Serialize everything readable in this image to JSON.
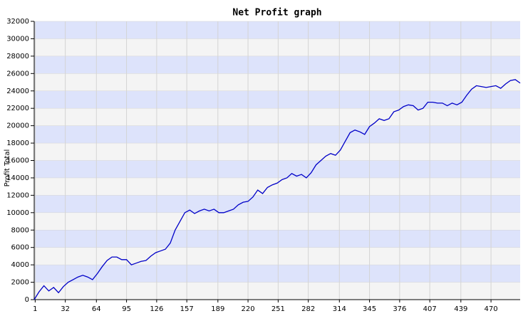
{
  "chart_data": {
    "type": "line",
    "title": "Net Profit graph",
    "y_label": "Profit Total",
    "x": [
      0,
      5,
      10,
      15,
      20,
      25,
      30,
      35,
      40,
      45,
      50,
      55,
      60,
      65,
      70,
      75,
      80,
      85,
      90,
      95,
      100,
      105,
      110,
      115,
      120,
      125,
      130,
      135,
      140,
      145,
      150,
      155,
      160,
      165,
      170,
      175,
      180,
      185,
      190,
      195,
      200,
      205,
      210,
      215,
      220,
      225,
      230,
      235,
      240,
      245,
      250,
      255,
      260,
      265,
      270,
      275,
      280,
      285,
      290,
      295,
      300,
      305,
      310,
      315,
      320,
      325,
      330,
      335,
      340,
      345,
      350,
      355,
      360,
      365,
      370,
      375,
      380,
      385,
      390,
      395,
      400,
      405,
      410,
      415,
      420,
      425,
      430,
      435,
      440,
      445,
      450,
      455,
      460,
      465,
      470,
      475,
      480,
      485,
      490,
      495,
      500
    ],
    "series": [
      {
        "name": "Net Profit",
        "color": "#0000c8",
        "values": [
          0,
          900,
          1600,
          1000,
          1400,
          800,
          1500,
          2000,
          2300,
          2600,
          2800,
          2600,
          2300,
          3000,
          3800,
          4500,
          4900,
          4900,
          4600,
          4600,
          4000,
          4200,
          4400,
          4500,
          5000,
          5400,
          5600,
          5800,
          6500,
          8000,
          9000,
          10000,
          10300,
          9900,
          10200,
          10400,
          10200,
          10400,
          10000,
          10000,
          10200,
          10400,
          10900,
          11200,
          11300,
          11800,
          12600,
          12200,
          12900,
          13200,
          13400,
          13800,
          14000,
          14500,
          14200,
          14400,
          14000,
          14600,
          15500,
          16000,
          16500,
          16800,
          16600,
          17200,
          18200,
          19200,
          19500,
          19300,
          19000,
          19900,
          20300,
          20800,
          20600,
          20800,
          21600,
          21800,
          22200,
          22400,
          22300,
          21800,
          22000,
          22700,
          22700,
          22600,
          22600,
          22300,
          22600,
          22400,
          22700,
          23500,
          24200,
          24600,
          24500,
          24400,
          24500,
          24600,
          24300,
          24800,
          25200,
          25300,
          24900
        ]
      }
    ],
    "xlim": [
      0,
      500
    ],
    "xticks": [
      1,
      32,
      64,
      95,
      126,
      157,
      189,
      220,
      251,
      282,
      314,
      345,
      376,
      407,
      439,
      470
    ],
    "ylim": [
      0,
      32000
    ],
    "yticks": [
      0,
      2000,
      4000,
      6000,
      8000,
      10000,
      12000,
      14000,
      16000,
      18000,
      20000,
      22000,
      24000,
      26000,
      28000,
      30000,
      32000
    ],
    "band_colors": [
      "#f4f4f4",
      "#dde3fb"
    ],
    "grid_color": "#d4d4d4"
  }
}
